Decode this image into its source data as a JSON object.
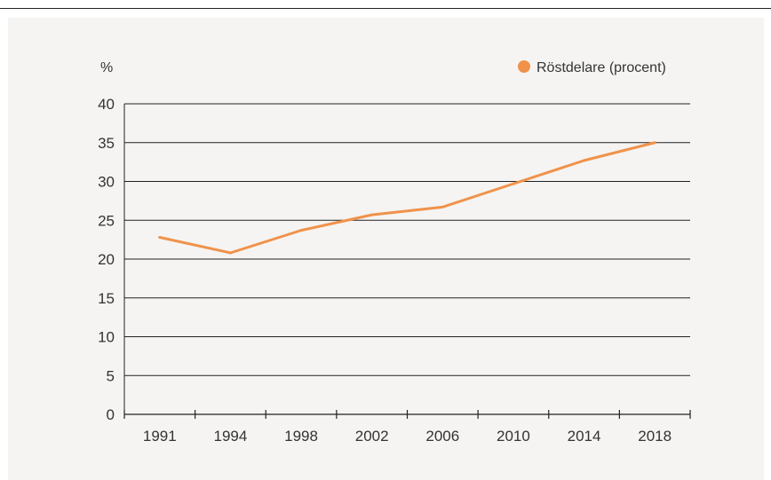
{
  "chart_data": {
    "type": "line",
    "ylabel": "%",
    "ylim": [
      0,
      40
    ],
    "yticks": [
      0,
      5,
      10,
      15,
      20,
      25,
      30,
      35,
      40
    ],
    "categories": [
      "1991",
      "1994",
      "1998",
      "2002",
      "2006",
      "2010",
      "2014",
      "2018"
    ],
    "series": [
      {
        "name": "Röstdelare (procent)",
        "color": "#f0924a",
        "values": [
          22.8,
          20.8,
          23.7,
          25.7,
          26.7,
          29.7,
          32.7,
          35.0
        ]
      }
    ],
    "grid": true,
    "legend_position": "top-right"
  }
}
